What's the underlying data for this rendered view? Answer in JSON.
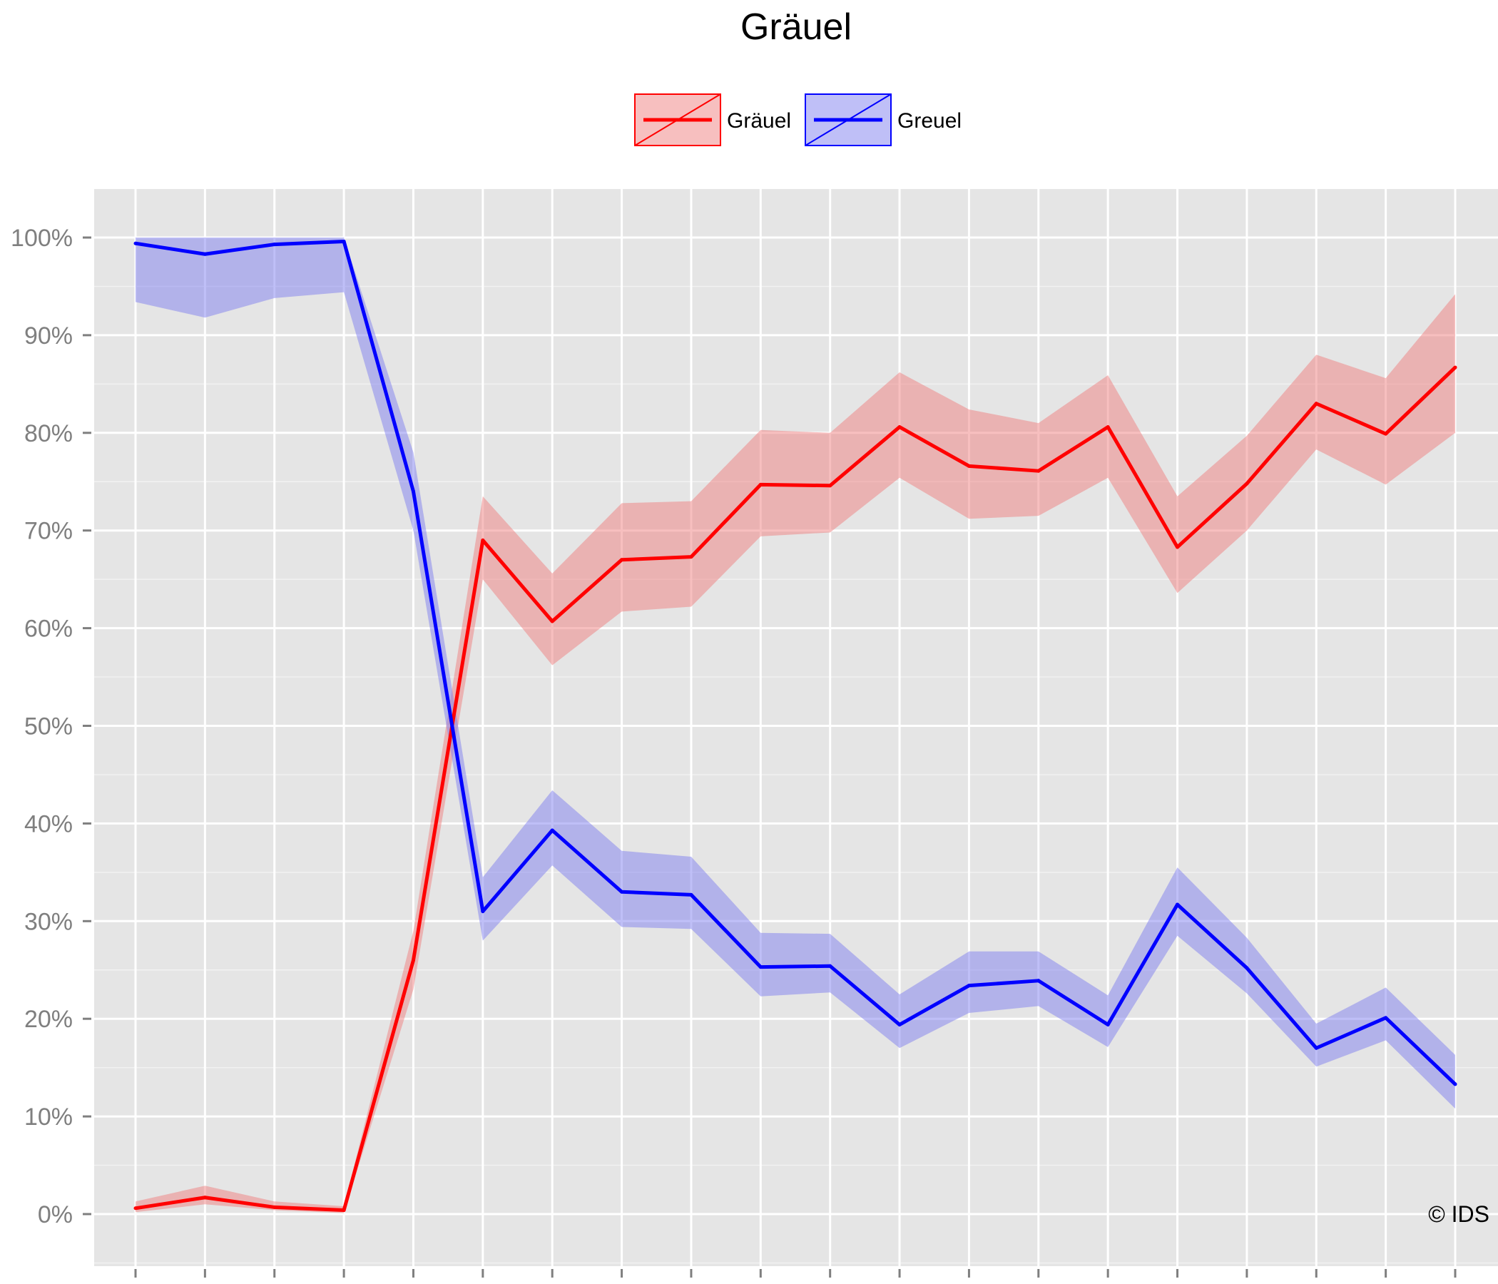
{
  "chart_data": {
    "type": "line",
    "title": "Gräuel",
    "xlabel": "",
    "ylabel": "",
    "x": [
      1,
      2,
      3,
      4,
      5,
      6,
      7,
      8,
      9,
      10,
      11,
      12,
      13,
      14,
      15,
      16,
      17,
      18,
      19,
      20
    ],
    "x_tick_labels_shown": false,
    "ylim": [
      0,
      1
    ],
    "y_ticks": [
      0,
      0.1,
      0.2,
      0.3,
      0.4,
      0.5,
      0.6,
      0.7,
      0.8,
      0.9,
      1.0
    ],
    "y_tick_labels": [
      "0%",
      "10%",
      "20%",
      "30%",
      "40%",
      "50%",
      "60%",
      "70%",
      "80%",
      "90%",
      "100%"
    ],
    "grid": true,
    "legend_position": "top",
    "series": [
      {
        "name": "Gräuel",
        "color": "#ff0000",
        "band_color": "#f08080",
        "values": [
          0.006,
          0.017,
          0.007,
          0.004,
          0.26,
          0.69,
          0.607,
          0.67,
          0.673,
          0.747,
          0.746,
          0.806,
          0.766,
          0.761,
          0.806,
          0.683,
          0.748,
          0.83,
          0.799,
          0.867
        ],
        "lower": [
          0.002,
          0.01,
          0.004,
          0.001,
          0.23,
          0.65,
          0.562,
          0.617,
          0.622,
          0.694,
          0.698,
          0.754,
          0.712,
          0.715,
          0.754,
          0.636,
          0.7,
          0.783,
          0.747,
          0.8
        ],
        "upper": [
          0.013,
          0.029,
          0.013,
          0.008,
          0.29,
          0.735,
          0.656,
          0.728,
          0.73,
          0.803,
          0.8,
          0.862,
          0.824,
          0.81,
          0.859,
          0.735,
          0.797,
          0.88,
          0.856,
          0.942
        ]
      },
      {
        "name": "Greuel",
        "color": "#0000ff",
        "band_color": "#8080f0",
        "values": [
          0.994,
          0.983,
          0.993,
          0.996,
          0.74,
          0.31,
          0.393,
          0.33,
          0.327,
          0.253,
          0.254,
          0.194,
          0.234,
          0.239,
          0.194,
          0.317,
          0.252,
          0.17,
          0.201,
          0.133
        ],
        "lower": [
          0.934,
          0.918,
          0.938,
          0.944,
          0.7,
          0.28,
          0.357,
          0.294,
          0.292,
          0.223,
          0.227,
          0.17,
          0.206,
          0.213,
          0.171,
          0.285,
          0.226,
          0.151,
          0.178,
          0.108
        ],
        "upper": [
          1.0,
          1.0,
          1.0,
          1.0,
          0.78,
          0.345,
          0.434,
          0.372,
          0.366,
          0.288,
          0.287,
          0.225,
          0.269,
          0.269,
          0.224,
          0.355,
          0.283,
          0.195,
          0.232,
          0.163
        ]
      }
    ]
  },
  "copyright": "© IDS"
}
